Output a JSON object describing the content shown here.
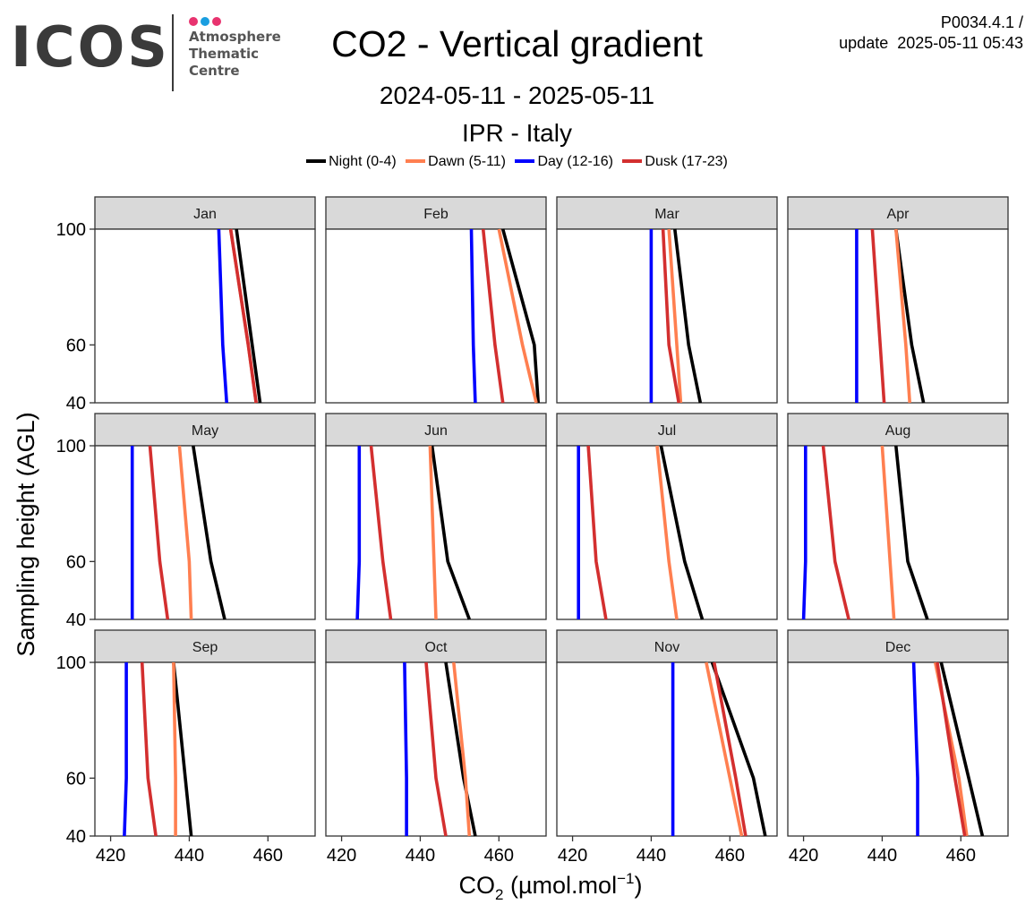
{
  "logo": {
    "wordmark": "ICOS",
    "lines": [
      "Atmosphere",
      "Thematic",
      "Centre"
    ],
    "dot_colors": [
      "#e8336f",
      "#1a9ee0",
      "#e8336f"
    ]
  },
  "header": {
    "title": "CO2 - Vertical gradient",
    "version": "P0034.4.1 /",
    "update_line": "update  2025-05-11 05:43",
    "date_range": "2024-05-11 - 2025-05-11",
    "station": "IPR - Italy"
  },
  "legend": [
    {
      "label": "Night (0-4)",
      "color": "#000000"
    },
    {
      "label": "Dawn (5-11)",
      "color": "#ff7f50"
    },
    {
      "label": "Day (12-16)",
      "color": "#0000ff"
    },
    {
      "label": "Dusk (17-23)",
      "color": "#d32f2f"
    }
  ],
  "chart_data": {
    "type": "line",
    "layout": "small-multiples",
    "xlabel": "CO",
    "xlabel_sub": "2",
    "xlabel_unit": "(µmol.mol",
    "xlabel_sup": "−1",
    "xlabel_close": ")",
    "ylabel": "Sampling height (AGL)",
    "xlim": [
      416,
      472
    ],
    "ylim": [
      40,
      100
    ],
    "x_ticks": [
      "420",
      "440",
      "460"
    ],
    "x_tick_values": [
      420,
      440,
      460
    ],
    "y_ticks": [
      "40",
      "60",
      "100"
    ],
    "y_tick_values": [
      40,
      60,
      100
    ],
    "heights": [
      40,
      60,
      100
    ],
    "series_names": [
      "Night (0-4)",
      "Dawn (5-11)",
      "Day (12-16)",
      "Dusk (17-23)"
    ],
    "series_colors": [
      "#000000",
      "#ff7f50",
      "#0000ff",
      "#d32f2f"
    ],
    "panels": [
      {
        "month": "Jan",
        "series": [
          [
            458,
            456,
            452
          ],
          [
            457,
            455,
            450.5
          ],
          [
            449.5,
            448.5,
            447.5
          ],
          [
            457,
            455,
            450.5
          ]
        ]
      },
      {
        "month": "Feb",
        "series": [
          [
            470,
            469,
            461
          ],
          [
            469.5,
            466,
            460
          ],
          [
            454,
            453.5,
            453
          ],
          [
            461,
            459,
            456
          ]
        ]
      },
      {
        "month": "Mar",
        "series": [
          [
            452.5,
            449.5,
            446
          ],
          [
            447.5,
            446.5,
            444.5
          ],
          [
            440,
            440,
            440
          ],
          [
            447,
            444.5,
            443
          ]
        ]
      },
      {
        "month": "Apr",
        "series": [
          [
            450.5,
            447.5,
            443.5
          ],
          [
            447,
            446,
            443.5
          ],
          [
            433.5,
            433.5,
            433.5
          ],
          [
            440.5,
            439.5,
            437.5
          ]
        ]
      },
      {
        "month": "May",
        "series": [
          [
            449,
            445.5,
            441
          ],
          [
            440.5,
            440,
            437.5
          ],
          [
            425.5,
            425.5,
            425.5
          ],
          [
            434.5,
            432.5,
            430
          ]
        ]
      },
      {
        "month": "Jun",
        "series": [
          [
            452.5,
            447,
            443
          ],
          [
            444,
            443.5,
            442.5
          ],
          [
            424,
            424.5,
            424.5
          ],
          [
            432.5,
            430.5,
            427.5
          ]
        ]
      },
      {
        "month": "Jul",
        "series": [
          [
            453,
            448.5,
            442.5
          ],
          [
            446.5,
            444.5,
            441.5
          ],
          [
            421.5,
            421.5,
            421.5
          ],
          [
            428.5,
            426,
            424
          ]
        ]
      },
      {
        "month": "Aug",
        "series": [
          [
            451.5,
            446.5,
            443.5
          ],
          [
            443,
            442,
            440
          ],
          [
            420,
            420.5,
            420.5
          ],
          [
            431.5,
            428,
            425
          ]
        ]
      },
      {
        "month": "Sep",
        "series": [
          [
            440.5,
            439,
            436
          ],
          [
            436.5,
            436.5,
            436
          ],
          [
            423.5,
            424,
            424
          ],
          [
            431.5,
            429.5,
            428
          ]
        ]
      },
      {
        "month": "Oct",
        "series": [
          [
            454,
            451,
            446.5
          ],
          [
            452.5,
            451.5,
            448.5
          ],
          [
            436.5,
            436.5,
            436
          ],
          [
            446.5,
            444,
            441.5
          ]
        ]
      },
      {
        "month": "Nov",
        "series": [
          [
            469,
            466,
            455.5
          ],
          [
            463,
            460,
            454
          ],
          [
            445.5,
            445.5,
            445.5
          ],
          [
            464,
            461.5,
            456
          ]
        ]
      },
      {
        "month": "Dec",
        "series": [
          [
            465.5,
            462,
            455
          ],
          [
            461.5,
            459.5,
            453.5
          ],
          [
            449,
            449,
            448
          ],
          [
            461,
            458.5,
            454
          ]
        ]
      }
    ]
  }
}
